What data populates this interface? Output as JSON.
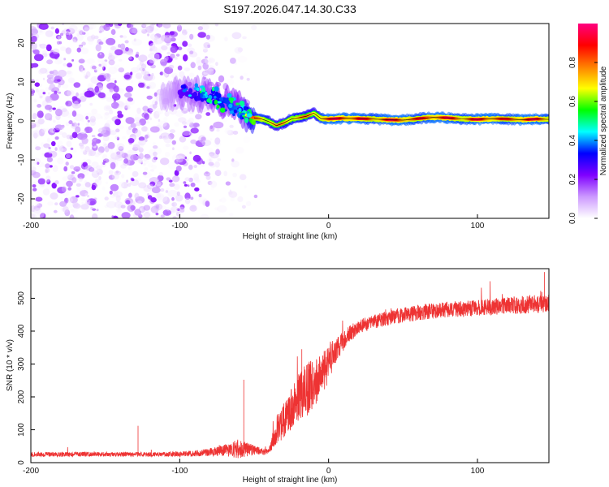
{
  "title": "S197.2026.047.14.30.C33",
  "chart_data": [
    {
      "type": "heatmap",
      "title": "S197.2026.047.14.30.C33",
      "xlabel": "Height of straight line (km)",
      "ylabel": "Frequency (Hz)",
      "xlim": [
        -200,
        148
      ],
      "ylim": [
        -25,
        25
      ],
      "xticks": [
        -200,
        -100,
        0,
        100
      ],
      "yticks": [
        20,
        10,
        0,
        -10,
        -20
      ],
      "colorbar": {
        "label": "Normalized spectral amplitude",
        "range": [
          0,
          1
        ],
        "ticks": [
          "0.0",
          "0.2",
          "0.4",
          "0.6",
          "0.8"
        ],
        "colors": [
          "#ffffff",
          "#cc99ff",
          "#7f00ff",
          "#0000ff",
          "#00ffff",
          "#00ff00",
          "#ffff00",
          "#ff8000",
          "#ff0000",
          "#ff0080"
        ]
      },
      "ridge": {
        "description": "dominant frequency trace",
        "x": [
          -110,
          -100,
          -90,
          -80,
          -70,
          -60,
          -55,
          -50,
          -45,
          -40,
          -35,
          -30,
          -25,
          -20,
          -15,
          -10,
          -5,
          0,
          10,
          20,
          30,
          40,
          50,
          60,
          70,
          80,
          90,
          100,
          110,
          120,
          130,
          140,
          148
        ],
        "y": [
          6.5,
          7.5,
          7.0,
          6.5,
          5.0,
          3.0,
          1.5,
          0.8,
          0.5,
          -0.2,
          -1.2,
          -0.5,
          0.5,
          0.8,
          1.2,
          2.0,
          0.6,
          0.5,
          0.7,
          0.6,
          0.5,
          0.3,
          0.2,
          0.6,
          0.9,
          0.8,
          0.5,
          0.4,
          0.6,
          0.5,
          0.3,
          0.5,
          0.4
        ],
        "peak_amplitude": [
          0.25,
          0.35,
          0.4,
          0.45,
          0.5,
          0.55,
          0.7,
          0.85,
          0.9,
          0.8,
          0.75,
          0.8,
          0.85,
          0.85,
          0.8,
          0.75,
          0.9,
          0.95,
          0.95,
          0.95,
          0.9,
          0.95,
          0.95,
          0.9,
          0.95,
          0.95,
          0.9,
          0.95,
          0.95,
          0.9,
          0.95,
          0.95,
          0.9
        ]
      },
      "noise_region_x": [
        -200,
        -55
      ]
    },
    {
      "type": "line",
      "xlabel": "Height of straight line (km)",
      "ylabel": "SNR (10 * v/v)",
      "xlim": [
        -200,
        148
      ],
      "ylim": [
        0,
        590
      ],
      "xticks": [
        -200,
        -100,
        0,
        100
      ],
      "yticks": [
        0,
        100,
        200,
        300,
        400,
        500
      ],
      "color": "#ee3333",
      "series": [
        {
          "name": "SNR",
          "x": [
            -200,
            -180,
            -160,
            -140,
            -120,
            -100,
            -90,
            -80,
            -70,
            -60,
            -50,
            -45,
            -40,
            -38,
            -35,
            -30,
            -25,
            -20,
            -15,
            -10,
            -5,
            0,
            5,
            10,
            15,
            20,
            25,
            30,
            40,
            50,
            60,
            70,
            80,
            90,
            100,
            110,
            120,
            130,
            140,
            148
          ],
          "values": [
            25,
            25,
            26,
            25,
            25,
            26,
            28,
            32,
            38,
            42,
            38,
            34,
            32,
            60,
            100,
            130,
            160,
            200,
            225,
            240,
            270,
            300,
            340,
            370,
            395,
            410,
            420,
            428,
            440,
            448,
            456,
            462,
            466,
            468,
            470,
            474,
            478,
            480,
            482,
            484
          ],
          "noise": [
            7,
            7,
            7,
            7,
            7,
            8,
            9,
            12,
            18,
            30,
            14,
            10,
            10,
            25,
            45,
            55,
            65,
            75,
            85,
            75,
            70,
            55,
            40,
            30,
            25,
            22,
            22,
            22,
            22,
            22,
            24,
            24,
            24,
            24,
            24,
            26,
            26,
            28,
            28,
            28
          ]
        }
      ],
      "annotations": [
        {
          "x": -128,
          "y": 112,
          "label": ""
        },
        {
          "x": -57,
          "y": 252,
          "label": ""
        },
        {
          "x": -18,
          "y": 345,
          "label": ""
        },
        {
          "x": 145,
          "y": 580,
          "label": ""
        }
      ]
    }
  ]
}
